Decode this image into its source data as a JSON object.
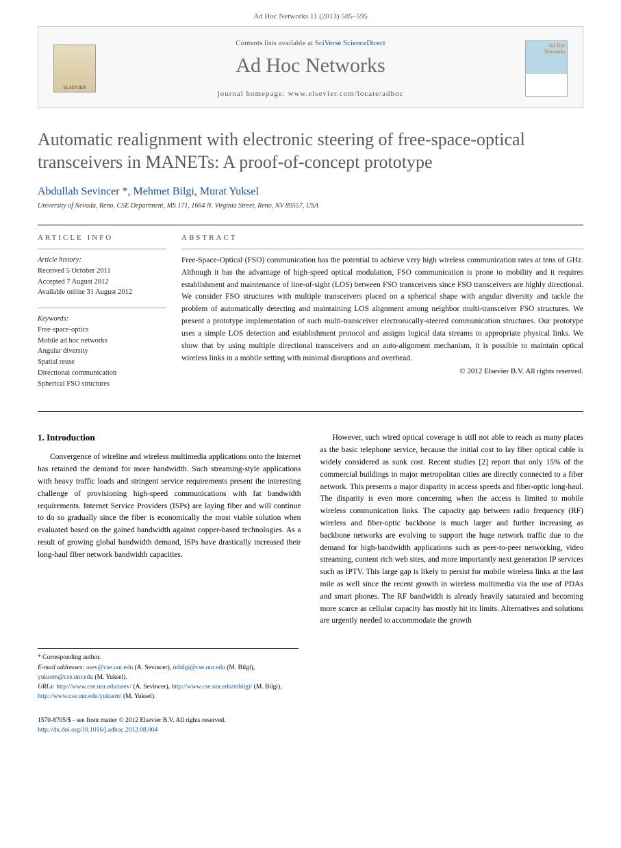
{
  "page_header": "Ad Hoc Networks 11 (2013) 585–595",
  "contents_box": {
    "contents_line_prefix": "Contents lists available at ",
    "contents_link": "SciVerse ScienceDirect",
    "journal_name": "Ad Hoc Networks",
    "homepage_prefix": "journal homepage: ",
    "homepage_url": "www.elsevier.com/locate/adhoc",
    "publisher_logo_text": "ELSEVIER",
    "cover_text": "Ad Hoc Networks"
  },
  "article": {
    "title": "Automatic realignment with electronic steering of free-space-optical transceivers in MANETs: A proof-of-concept prototype",
    "authors_html": "Abdullah Sevincer *, Mehmet Bilgi, Murat Yuksel",
    "affiliation": "University of Nevada, Reno, CSE Department, MS 171, 1664 N. Virginia Street, Reno, NV 89557, USA"
  },
  "info": {
    "header": "ARTICLE INFO",
    "history_label": "Article history:",
    "received": "Received 5 October 2011",
    "accepted": "Accepted 7 August 2012",
    "online": "Available online 31 August 2012",
    "keywords_label": "Keywords:",
    "keywords": [
      "Free-space-optics",
      "Mobile ad hoc networks",
      "Angular diversity",
      "Spatial reuse",
      "Directional communication",
      "Spherical FSO structures"
    ]
  },
  "abstract": {
    "header": "ABSTRACT",
    "text": "Free-Space-Optical (FSO) communication has the potential to achieve very high wireless communication rates at tens of GHz. Although it has the advantage of high-speed optical modulation, FSO communication is prone to mobility and it requires establishment and maintenance of line-of-sight (LOS) between FSO transceivers since FSO transceivers are highly directional. We consider FSO structures with multiple transceivers placed on a spherical shape with angular diversity and tackle the problem of automatically detecting and maintaining LOS alignment among neighbor multi-transceiver FSO structures. We present a prototype implementation of such multi-transceiver electronically-steered communication structures. Our prototype uses a simple LOS detection and establishment protocol and assigns logical data streams to appropriate physical links. We show that by using multiple directional transceivers and an auto-alignment mechanism, it is possible to maintain optical wireless links in a mobile setting with minimal disruptions and overhead.",
    "copyright": "© 2012 Elsevier B.V. All rights reserved."
  },
  "body": {
    "section_number": "1.",
    "section_title": "Introduction",
    "col1_p1": "Convergence of wireline and wireless multimedia applications onto the Internet has retained the demand for more bandwidth. Such streaming-style applications with heavy traffic loads and stringent service requirements present the interesting challenge of provisioning high-speed communications with fat bandwidth requirements. Internet Service Providers (ISPs) are laying fiber and will continue to do so gradually since the fiber is economically the most viable solution when evaluated based on the gained bandwidth against copper-based technologies. As a result of growing global bandwidth demand, ISPs have drastically increased their long-haul fiber network bandwidth capacities.",
    "col2_p1": "However, such wired optical coverage is still not able to reach as many places as the basic telephone service, because the initial cost to lay fiber optical cable is widely considered as sunk cost. Recent studies [2] report that only 15% of the commercial buildings in major metropolitan cities are directly connected to a fiber network. This presents a major disparity in access speeds and fiber-optic long-haul. The disparity is even more concerning when the access is limited to mobile wireless communication links. The capacity gap between radio frequency (RF) wireless and fiber-optic backbone is much larger and further increasing as backbone networks are evolving to support the huge network traffic due to the demand for high-bandwidth applications such as peer-to-peer networking, video streaming, content rich web sites, and more importantly next generation IP services such as IPTV. This large gap is likely to persist for mobile wireless links at the last mile as well since the recent growth in wireless multimedia via the use of PDAs and smart phones. The RF bandwidth is already heavily saturated and becoming more scarce as cellular capacity has mostly hit its limits. Alternatives and solutions are urgently needed to accommodate the growth"
  },
  "footnotes": {
    "corr": "* Corresponding author.",
    "email_label": "E-mail addresses: ",
    "emails": "asev@cse.unr.edu (A. Sevincer), mbilgi@cse.unr.edu (M. Bilgi), yuksem@cse.unr.edu (M. Yuksel).",
    "urls_label": "URLs: ",
    "urls": "http://www.cse.unr.edu/asev/ (A. Sevincer), http://www.cse.unr.edu/mbilgi/ (M. Bilgi), http://www.cse.unr.edu/yuksem/ (M. Yuksel)."
  },
  "footer": {
    "line1": "1570-8705/$ - see front matter © 2012 Elsevier B.V. All rights reserved.",
    "doi": "http://dx.doi.org/10.1016/j.adhoc.2012.08.004"
  },
  "colors": {
    "link": "#1a4fa3",
    "title_gray": "#5a5a5a",
    "body_text": "#111111"
  }
}
